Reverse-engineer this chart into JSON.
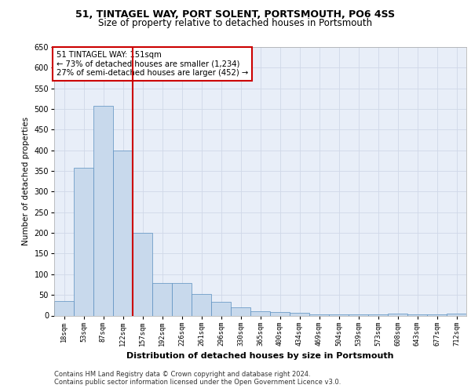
{
  "title1": "51, TINTAGEL WAY, PORT SOLENT, PORTSMOUTH, PO6 4SS",
  "title2": "Size of property relative to detached houses in Portsmouth",
  "xlabel": "Distribution of detached houses by size in Portsmouth",
  "ylabel": "Number of detached properties",
  "categories": [
    "18sqm",
    "53sqm",
    "87sqm",
    "122sqm",
    "157sqm",
    "192sqm",
    "226sqm",
    "261sqm",
    "296sqm",
    "330sqm",
    "365sqm",
    "400sqm",
    "434sqm",
    "469sqm",
    "504sqm",
    "539sqm",
    "573sqm",
    "608sqm",
    "643sqm",
    "677sqm",
    "712sqm"
  ],
  "values": [
    35,
    357,
    507,
    400,
    200,
    78,
    78,
    52,
    33,
    20,
    11,
    8,
    7,
    3,
    3,
    3,
    3,
    5,
    3,
    3,
    5
  ],
  "bar_color": "#c8d9ec",
  "bar_edge_color": "#5a8fc0",
  "vline_x_idx": 3,
  "vline_color": "#cc0000",
  "annotation_title": "51 TINTAGEL WAY: 151sqm",
  "annotation_line1": "← 73% of detached houses are smaller (1,234)",
  "annotation_line2": "27% of semi-detached houses are larger (452) →",
  "annotation_box_color": "#ffffff",
  "annotation_box_edge": "#cc0000",
  "ylim": [
    0,
    650
  ],
  "yticks": [
    0,
    50,
    100,
    150,
    200,
    250,
    300,
    350,
    400,
    450,
    500,
    550,
    600,
    650
  ],
  "grid_color": "#d0d8e8",
  "background_color": "#e8eef8",
  "footer1": "Contains HM Land Registry data © Crown copyright and database right 2024.",
  "footer2": "Contains public sector information licensed under the Open Government Licence v3.0."
}
